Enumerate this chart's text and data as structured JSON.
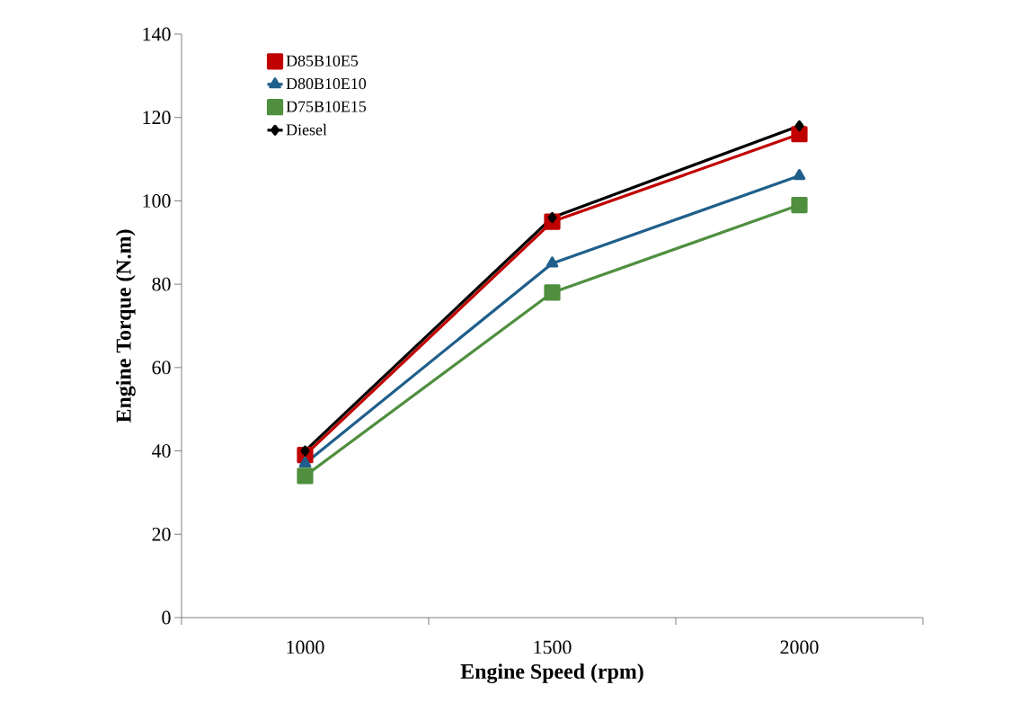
{
  "chart_data": {
    "type": "line",
    "xlabel": "Engine Speed (rpm)",
    "ylabel": "Engine Torque (N.m)",
    "categories": [
      "1000",
      "1500",
      "2000"
    ],
    "ylim": [
      0,
      140
    ],
    "yticks": [
      0,
      20,
      40,
      60,
      80,
      100,
      120,
      140
    ],
    "grid": false,
    "legend": "top left",
    "series": [
      {
        "name": "D85B10E5",
        "color": "#c00000",
        "marker": "square",
        "values": [
          39,
          95,
          116
        ]
      },
      {
        "name": "D80B10E10",
        "color": "#1f5f8b",
        "marker": "triangle",
        "values": [
          37,
          85,
          106
        ]
      },
      {
        "name": "D75B10E15",
        "color": "#4f8f3f",
        "marker": "square",
        "values": [
          34,
          78,
          99
        ]
      },
      {
        "name": "Diesel",
        "color": "#000000",
        "marker": "diamond",
        "values": [
          40,
          96,
          118
        ]
      }
    ]
  }
}
